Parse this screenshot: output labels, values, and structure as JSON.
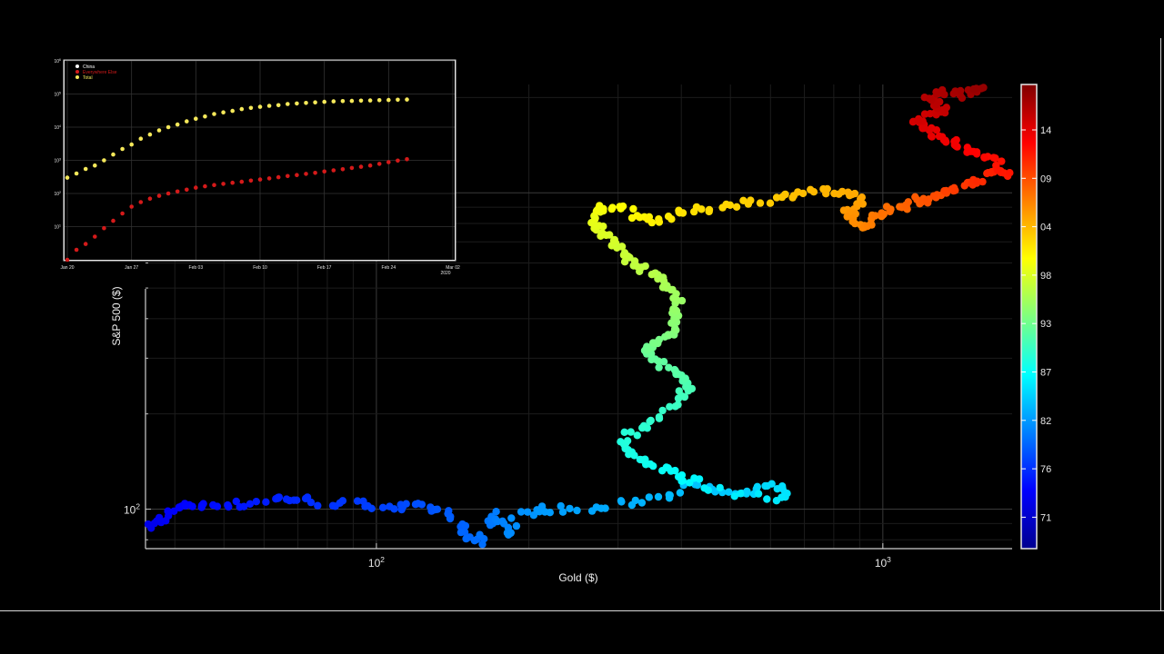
{
  "main": {
    "xlabel": "Gold ($)",
    "ylabel": "S&P 500 ($)",
    "x_scale": "log",
    "y_scale": "log",
    "x_ticks": [
      {
        "value": 100,
        "label": "10",
        "sup": "2"
      },
      {
        "value": 1000,
        "label": "10",
        "sup": "3"
      }
    ],
    "y_ticks": [
      {
        "value": 100,
        "label": "10",
        "sup": "2"
      }
    ],
    "xlim": [
      35,
      1800
    ],
    "ylim": [
      75,
      2200
    ],
    "grid": true
  },
  "colorbar": {
    "colormap": "jet",
    "labels": [
      "14",
      "09",
      "04",
      "98",
      "93",
      "87",
      "82",
      "76",
      "71"
    ]
  },
  "inset": {
    "x_tick_labels": [
      "Jan 20",
      "Jan 27",
      "Feb 03",
      "Feb 10",
      "Feb 17",
      "Feb 24",
      "Mar 02"
    ],
    "x_year": "2020",
    "y_scale": "log",
    "y_ticks": [
      {
        "label": "10",
        "sup": "1"
      },
      {
        "label": "10",
        "sup": "2"
      },
      {
        "label": "10",
        "sup": "3"
      },
      {
        "label": "10",
        "sup": "4"
      },
      {
        "label": "10",
        "sup": "5"
      },
      {
        "label": "10",
        "sup": "6"
      }
    ],
    "legend": [
      {
        "name": "China",
        "color": "#ffffff"
      },
      {
        "name": "Everywhere Else",
        "color": "#d41a1a"
      },
      {
        "name": "Total",
        "color": "#f5e85a"
      }
    ]
  },
  "chart_data": [
    {
      "type": "scatter",
      "title": "",
      "xlabel": "Gold ($)",
      "ylabel": "S&P 500 ($)",
      "x_scale": "log",
      "y_scale": "log",
      "xlim": [
        35,
        1800
      ],
      "ylim": [
        75,
        2200
      ],
      "color_by": "year (colorbar)",
      "path": [
        [
          35,
          84
        ],
        [
          36,
          90
        ],
        [
          38,
          94
        ],
        [
          40,
          100
        ],
        [
          42,
          104
        ],
        [
          45,
          102
        ],
        [
          50,
          104
        ],
        [
          55,
          103
        ],
        [
          62,
          108
        ],
        [
          65,
          108
        ],
        [
          72,
          107
        ],
        [
          80,
          104
        ],
        [
          90,
          104
        ],
        [
          100,
          103
        ],
        [
          110,
          101
        ],
        [
          120,
          102
        ],
        [
          130,
          100
        ],
        [
          140,
          97
        ],
        [
          145,
          88
        ],
        [
          150,
          82
        ],
        [
          160,
          78
        ],
        [
          165,
          90
        ],
        [
          170,
          96
        ],
        [
          178,
          90
        ],
        [
          185,
          82
        ],
        [
          190,
          96
        ],
        [
          210,
          100
        ],
        [
          230,
          100
        ],
        [
          260,
          99
        ],
        [
          300,
          103
        ],
        [
          340,
          107
        ],
        [
          380,
          112
        ],
        [
          420,
          118
        ],
        [
          470,
          114
        ],
        [
          520,
          110
        ],
        [
          560,
          114
        ],
        [
          600,
          120
        ],
        [
          640,
          113
        ],
        [
          620,
          108
        ],
        [
          500,
          112
        ],
        [
          430,
          122
        ],
        [
          400,
          126
        ],
        [
          380,
          132
        ],
        [
          360,
          136
        ],
        [
          330,
          145
        ],
        [
          310,
          152
        ],
        [
          300,
          160
        ],
        [
          320,
          175
        ],
        [
          340,
          185
        ],
        [
          370,
          200
        ],
        [
          390,
          215
        ],
        [
          400,
          230
        ],
        [
          420,
          245
        ],
        [
          410,
          260
        ],
        [
          390,
          270
        ],
        [
          370,
          285
        ],
        [
          350,
          300
        ],
        [
          335,
          315
        ],
        [
          345,
          330
        ],
        [
          360,
          340
        ],
        [
          380,
          350
        ],
        [
          390,
          370
        ],
        [
          385,
          400
        ],
        [
          390,
          430
        ],
        [
          395,
          460
        ],
        [
          390,
          490
        ],
        [
          375,
          510
        ],
        [
          360,
          540
        ],
        [
          345,
          560
        ],
        [
          330,
          580
        ],
        [
          315,
          610
        ],
        [
          305,
          650
        ],
        [
          295,
          690
        ],
        [
          285,
          720
        ],
        [
          278,
          760
        ],
        [
          272,
          800
        ],
        [
          270,
          840
        ],
        [
          275,
          880
        ],
        [
          290,
          910
        ],
        [
          310,
          890
        ],
        [
          330,
          840
        ],
        [
          350,
          820
        ],
        [
          380,
          840
        ],
        [
          410,
          870
        ],
        [
          450,
          890
        ],
        [
          500,
          920
        ],
        [
          560,
          940
        ],
        [
          620,
          960
        ],
        [
          680,
          1000
        ],
        [
          740,
          1020
        ],
        [
          800,
          1000
        ],
        [
          860,
          980
        ],
        [
          900,
          950
        ],
        [
          880,
          900
        ],
        [
          850,
          870
        ],
        [
          870,
          830
        ],
        [
          910,
          800
        ],
        [
          940,
          780
        ],
        [
          960,
          820
        ],
        [
          990,
          860
        ],
        [
          1030,
          880
        ],
        [
          1080,
          900
        ],
        [
          1130,
          930
        ],
        [
          1180,
          950
        ],
        [
          1230,
          940
        ],
        [
          1280,
          980
        ],
        [
          1330,
          1000
        ],
        [
          1380,
          1020
        ],
        [
          1430,
          1050
        ],
        [
          1500,
          1080
        ],
        [
          1560,
          1100
        ],
        [
          1620,
          1150
        ],
        [
          1680,
          1180
        ],
        [
          1750,
          1150
        ],
        [
          1700,
          1250
        ],
        [
          1600,
          1310
        ],
        [
          1500,
          1360
        ],
        [
          1420,
          1390
        ],
        [
          1360,
          1450
        ],
        [
          1300,
          1500
        ],
        [
          1250,
          1560
        ],
        [
          1200,
          1620
        ],
        [
          1160,
          1660
        ],
        [
          1200,
          1720
        ],
        [
          1260,
          1780
        ],
        [
          1320,
          1820
        ],
        [
          1280,
          1900
        ],
        [
          1240,
          1980
        ],
        [
          1290,
          2050
        ],
        [
          1370,
          2080
        ],
        [
          1450,
          2040
        ],
        [
          1520,
          2100
        ],
        [
          1580,
          2150
        ]
      ]
    },
    {
      "type": "scatter",
      "title": "",
      "y_scale": "log",
      "x": [
        "Jan 20",
        "Jan 21",
        "Jan 22",
        "Jan 23",
        "Jan 24",
        "Jan 25",
        "Jan 26",
        "Jan 27",
        "Jan 28",
        "Jan 29",
        "Jan 30",
        "Jan 31",
        "Feb 01",
        "Feb 02",
        "Feb 03",
        "Feb 04",
        "Feb 05",
        "Feb 06",
        "Feb 07",
        "Feb 08",
        "Feb 09",
        "Feb 10",
        "Feb 11",
        "Feb 12",
        "Feb 13",
        "Feb 14",
        "Feb 15",
        "Feb 16",
        "Feb 17",
        "Feb 18",
        "Feb 19",
        "Feb 20",
        "Feb 21",
        "Feb 22",
        "Feb 23",
        "Feb 24",
        "Feb 25",
        "Feb 26"
      ],
      "series": [
        {
          "name": "Everywhere Else",
          "color": "#d41a1a",
          "values": [
            1,
            2,
            3,
            5,
            9,
            15,
            25,
            40,
            55,
            70,
            85,
            100,
            115,
            130,
            150,
            165,
            180,
            195,
            210,
            225,
            245,
            265,
            285,
            310,
            335,
            360,
            390,
            420,
            460,
            500,
            540,
            590,
            640,
            700,
            780,
            880,
            980,
            1080
          ]
        },
        {
          "name": "Total",
          "color": "#f5e85a",
          "values": [
            300,
            400,
            550,
            700,
            1000,
            1500,
            2200,
            3000,
            4500,
            6000,
            8000,
            10000,
            12000,
            15000,
            18000,
            21000,
            25000,
            28000,
            31000,
            35000,
            38000,
            41000,
            44000,
            46000,
            50000,
            52000,
            54000,
            56000,
            58000,
            60000,
            61000,
            62000,
            63000,
            64000,
            65000,
            66000,
            67000,
            68000
          ]
        }
      ]
    }
  ]
}
